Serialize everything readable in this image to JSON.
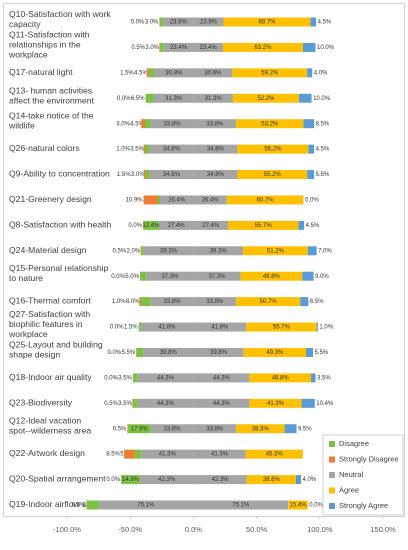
{
  "chart_data": {
    "type": "diverging-bar",
    "categories": [
      "Q10-Satisfaction with work capacity",
      "Q11-Satisfaction with relationships in the workplace",
      "Q17-natural light",
      "Q13- human activities affect the environment",
      "Q14-take notice of the wildlife",
      "Q26-natural colors",
      "Q9-Ability to concentration",
      "Q21-Greenery design",
      "Q8-Satisfaction with health",
      "Q24-Material design",
      "Q15-Personal relationship to nature",
      "Q16-Thermal comfort",
      "Q27-Satisfaction with biophilic features in workplace",
      "Q25-Layout and building shape design",
      "Q18-Indoor air quality",
      "Q23-Biodiversity",
      "Q12-Ideal vacation spot--wilderness area",
      "Q22-Artwork design",
      "Q20-Spatial arrangement",
      "Q19-Indoor airflow speed"
    ],
    "series": [
      {
        "name": "Disagree",
        "color": "#7cc142",
        "side": "left",
        "order": 1,
        "values": [
          3.0,
          3.0,
          4.5,
          6.5,
          4.5,
          3.5,
          3.0,
          2.0,
          12.4,
          2.0,
          5.0,
          8.0,
          1.5,
          5.5,
          3.5,
          3.5,
          17.9,
          5.0,
          14.9,
          9.5
        ],
        "value_labels": [
          "3.0%",
          "3.0%",
          "4.5%",
          "6.5%",
          "4.5%",
          "3.5%",
          "3.0%",
          "2.0%",
          "12.4%",
          "2.0%",
          "5.0%",
          "8.0%",
          "1.5%",
          "5.5%",
          "3.5%",
          "3.5%",
          "17.9%",
          "5.0%",
          "14.9%",
          "9.5%"
        ]
      },
      {
        "name": "Strongly Disagree",
        "color": "#ed7d31",
        "side": "left",
        "order": 2,
        "values": [
          0.0,
          0.5,
          1.5,
          0.0,
          3.0,
          1.0,
          1.5,
          10.9,
          0.0,
          0.5,
          0.0,
          1.0,
          0.0,
          0.0,
          0.0,
          0.5,
          0.5,
          8.5,
          0.0,
          null
        ],
        "value_labels": [
          "0.0%",
          "0.5%",
          "1.5%",
          "0.0%",
          "3.0%",
          "1.0%",
          "1.5%",
          "10.9%",
          "0.0%",
          "0.5%",
          "0.0%",
          "1.0%",
          "0.0%",
          "0.0%",
          "0.0%",
          "0.5%",
          "0.5%",
          "8.5%",
          "0.0%",
          null
        ]
      },
      {
        "name": "Neutral",
        "color": "#a5a5a5",
        "side": "both",
        "order": 0,
        "values": [
          23.9,
          23.4,
          30.8,
          31.3,
          33.8,
          34.8,
          34.8,
          26.4,
          27.4,
          39.3,
          37.3,
          33.8,
          41.8,
          39.8,
          44.3,
          44.3,
          33.8,
          41.3,
          42.3,
          75.1
        ],
        "value_labels": [
          "23.9%",
          "23.4%",
          "30.8%",
          "31.3%",
          "33.8%",
          "34.8%",
          "34.8%",
          "26.4%",
          "27.4%",
          "39.3%",
          "37.3%",
          "33.8%",
          "41.8%",
          "39.8%",
          "44.3%",
          "44.3%",
          "33.8%",
          "41.3%",
          "42.3%",
          "75.1%"
        ]
      },
      {
        "name": "Agree",
        "color": "#ffc000",
        "side": "right",
        "order": 1,
        "values": [
          68.7,
          63.2,
          59.2,
          52.2,
          53.2,
          56.2,
          55.2,
          60.7,
          55.7,
          51.2,
          48.8,
          50.7,
          55.7,
          49.3,
          48.8,
          41.3,
          38.3,
          45.3,
          38.8,
          15.4
        ],
        "value_labels": [
          "68.7%",
          "63.2%",
          "59.2%",
          "52.2%",
          "53.2%",
          "56.2%",
          "55.2%",
          "60.7%",
          "55.7%",
          "51.2%",
          "48.8%",
          "50.7%",
          "55.7%",
          "49.3%",
          "48.8%",
          "41.3%",
          "38.3%",
          "45.3%",
          "38.8%",
          "15.4%"
        ]
      },
      {
        "name": "Strongly Agree",
        "color": "#5b9bd5",
        "side": "right",
        "order": 2,
        "values": [
          4.5,
          10.0,
          4.0,
          10.0,
          8.5,
          4.5,
          5.5,
          0.0,
          4.5,
          7.0,
          9.0,
          6.5,
          1.0,
          5.5,
          3.5,
          10.4,
          9.5,
          null,
          4.0,
          0.0
        ],
        "value_labels": [
          "4.5%",
          "10.0%",
          "4.0%",
          "10.0%",
          "8.5%",
          "4.5%",
          "5.5%",
          "0.0%",
          "4.5%",
          "7.0%",
          "9.0%",
          "6.5%",
          "1.0%",
          "5.5%",
          "3.5%",
          "10.4%",
          "9.5%",
          null,
          "4.0%",
          "0.0%"
        ]
      }
    ],
    "xlim": [
      -100,
      150
    ],
    "xticks": [
      {
        "value": -100,
        "label": "-100.0%"
      },
      {
        "value": -50,
        "label": "-50.0%"
      },
      {
        "value": 0,
        "label": "0.0%"
      },
      {
        "value": 50,
        "label": "50.0%"
      },
      {
        "value": 100,
        "label": "100.0%"
      },
      {
        "value": 150,
        "label": "150.0%"
      }
    ],
    "legend": "lower right"
  }
}
